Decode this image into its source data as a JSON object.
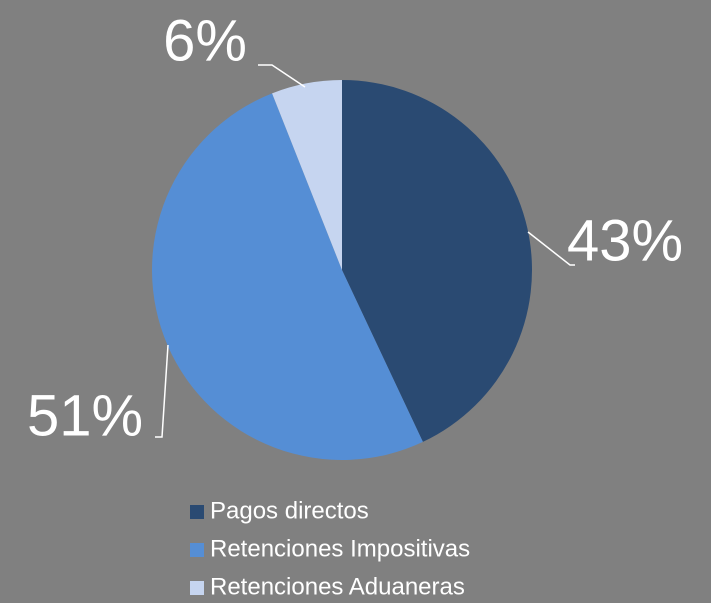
{
  "chart_data": {
    "type": "pie",
    "categories": [
      "Pagos directos",
      "Retenciones Impositivas",
      "Retenciones Aduaneras"
    ],
    "values": [
      43,
      51,
      6
    ],
    "value_labels": [
      "43%",
      "51%",
      "6%"
    ],
    "colors": [
      "#2a4a72",
      "#558ed5",
      "#c6d5f0"
    ],
    "legend": "bottom"
  }
}
